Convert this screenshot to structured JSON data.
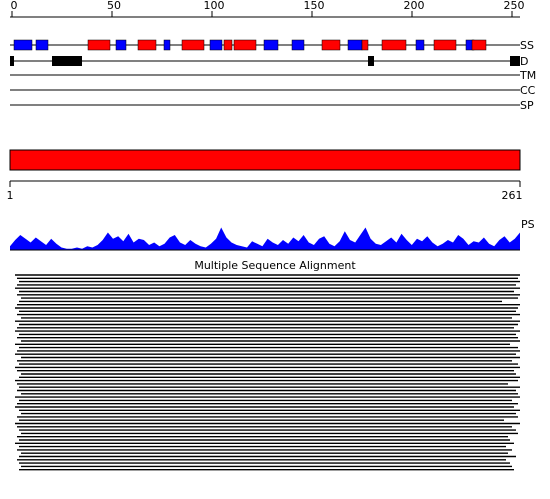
{
  "axis": {
    "ticks": [
      0,
      50,
      100,
      150,
      200,
      250
    ],
    "lim": [
      0,
      254
    ]
  },
  "tracks": {
    "labels": [
      "SS",
      "D",
      "TM",
      "CC",
      "SP"
    ]
  },
  "ss": {
    "segments": [
      {
        "start": 1,
        "end": 10,
        "color": "#0000ff"
      },
      {
        "start": 12,
        "end": 18,
        "color": "#0000ff"
      },
      {
        "start": 38,
        "end": 49,
        "color": "#ff0000"
      },
      {
        "start": 52,
        "end": 57,
        "color": "#0000ff"
      },
      {
        "start": 63,
        "end": 72,
        "color": "#ff0000"
      },
      {
        "start": 76,
        "end": 79,
        "color": "#0000ff"
      },
      {
        "start": 85,
        "end": 96,
        "color": "#ff0000"
      },
      {
        "start": 99,
        "end": 105,
        "color": "#0000ff"
      },
      {
        "start": 106,
        "end": 110,
        "color": "#ff0000"
      },
      {
        "start": 111,
        "end": 122,
        "color": "#ff0000"
      },
      {
        "start": 126,
        "end": 133,
        "color": "#0000ff"
      },
      {
        "start": 140,
        "end": 146,
        "color": "#0000ff"
      },
      {
        "start": 155,
        "end": 164,
        "color": "#ff0000"
      },
      {
        "start": 168,
        "end": 175,
        "color": "#0000ff"
      },
      {
        "start": 175,
        "end": 178,
        "color": "#ff0000"
      },
      {
        "start": 185,
        "end": 197,
        "color": "#ff0000"
      },
      {
        "start": 202,
        "end": 206,
        "color": "#0000ff"
      },
      {
        "start": 211,
        "end": 222,
        "color": "#ff0000"
      },
      {
        "start": 227,
        "end": 231,
        "color": "#0000ff"
      },
      {
        "start": 230,
        "end": 237,
        "color": "#ff0000"
      }
    ]
  },
  "disorder": {
    "color": "#000000",
    "segments": [
      {
        "start": 0,
        "end": 1
      },
      {
        "start": 21,
        "end": 35
      },
      {
        "start": 179,
        "end": 181
      },
      {
        "start": 250,
        "end": 254
      }
    ]
  },
  "domain": {
    "color": "#ff0000",
    "range": [
      1,
      261
    ],
    "labels": [
      "1",
      "261"
    ]
  },
  "profile": {
    "label": "PS",
    "color": "#0000ff",
    "ylim": [
      0,
      20
    ],
    "values": [
      3,
      8,
      12,
      9,
      6,
      10,
      7,
      4,
      9,
      5,
      2,
      1,
      1,
      2,
      1,
      3,
      2,
      4,
      8,
      14,
      9,
      11,
      7,
      13,
      6,
      9,
      8,
      4,
      6,
      3,
      5,
      10,
      12,
      6,
      4,
      8,
      5,
      3,
      2,
      5,
      9,
      18,
      10,
      6,
      4,
      3,
      2,
      7,
      5,
      3,
      9,
      6,
      4,
      8,
      5,
      10,
      7,
      12,
      6,
      4,
      9,
      11,
      5,
      3,
      7,
      15,
      8,
      6,
      12,
      18,
      9,
      5,
      4,
      7,
      10,
      6,
      13,
      8,
      4,
      9,
      7,
      11,
      6,
      3,
      5,
      8,
      6,
      12,
      9,
      4,
      7,
      6,
      10,
      5,
      3,
      8,
      11,
      6,
      9,
      14
    ]
  },
  "alignment": {
    "title": "Multiple Sequence Alignment",
    "rows": [
      [
        0,
        254
      ],
      [
        1,
        253
      ],
      [
        2,
        254
      ],
      [
        1,
        252
      ],
      [
        0,
        254
      ],
      [
        2,
        251
      ],
      [
        1,
        254
      ],
      [
        3,
        253
      ],
      [
        2,
        245
      ],
      [
        1,
        254
      ],
      [
        0,
        253
      ],
      [
        2,
        252
      ],
      [
        1,
        254
      ],
      [
        3,
        250
      ],
      [
        0,
        254
      ],
      [
        2,
        253
      ],
      [
        1,
        251
      ],
      [
        0,
        254
      ],
      [
        2,
        252
      ],
      [
        1,
        253
      ],
      [
        3,
        254
      ],
      [
        0,
        249
      ],
      [
        2,
        253
      ],
      [
        1,
        254
      ],
      [
        0,
        252
      ],
      [
        3,
        254
      ],
      [
        1,
        250
      ],
      [
        2,
        253
      ],
      [
        0,
        254
      ],
      [
        1,
        251
      ],
      [
        3,
        252
      ],
      [
        2,
        254
      ],
      [
        0,
        253
      ],
      [
        1,
        248
      ],
      [
        2,
        254
      ],
      [
        1,
        252
      ],
      [
        3,
        253
      ],
      [
        0,
        254
      ],
      [
        2,
        250
      ],
      [
        1,
        253
      ],
      [
        0,
        251
      ],
      [
        2,
        254
      ],
      [
        3,
        252
      ],
      [
        1,
        253
      ],
      [
        2,
        246
      ],
      [
        0,
        254
      ],
      [
        1,
        250
      ],
      [
        2,
        252
      ],
      [
        3,
        253
      ],
      [
        1,
        248
      ],
      [
        2,
        249
      ],
      [
        0,
        251
      ],
      [
        2,
        247
      ],
      [
        1,
        250
      ],
      [
        3,
        248
      ],
      [
        2,
        252
      ],
      [
        1,
        247
      ],
      [
        2,
        249
      ],
      [
        3,
        250
      ],
      [
        2,
        251
      ]
    ]
  }
}
